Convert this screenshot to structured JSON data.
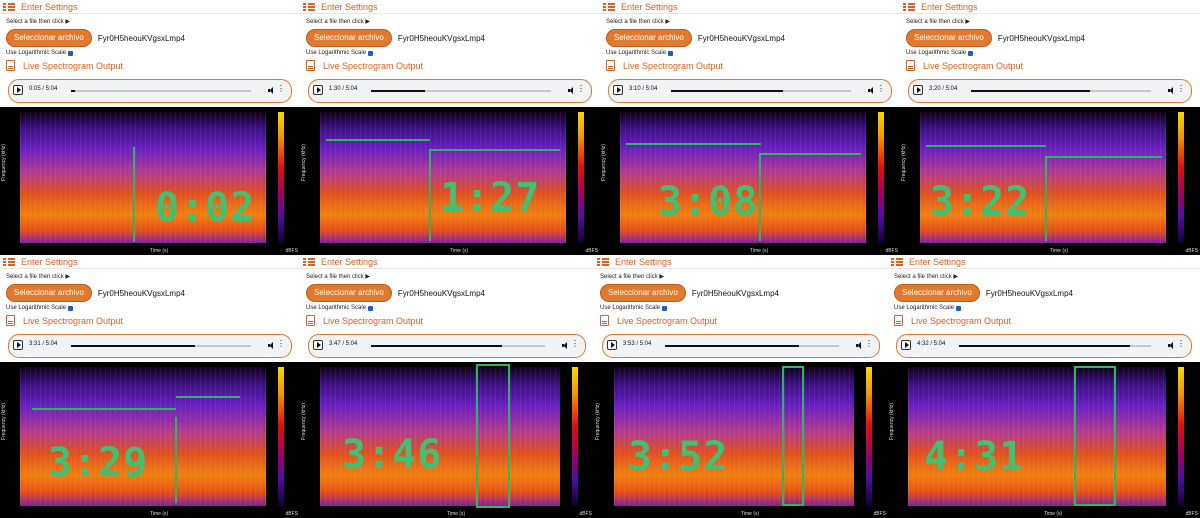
{
  "panels": [
    {
      "enter_settings": "Enter Settings",
      "select_file": "Select a file then click",
      "btn": "Seleccionar archivo",
      "filename": "Fyr0H5heouKVgsxLmp4",
      "log_scale": "Use Logarithmic Scale",
      "live_output": "Live Spectrogram Output",
      "player_time": "0:05 / 5:04",
      "progress": 0.02,
      "timestamp": "0:02",
      "y_label": "Frequency (kHz)",
      "x_label": "Time (s)",
      "unit": "dBFS"
    },
    {
      "enter_settings": "Enter Settings",
      "select_file": "Select a file then click",
      "btn": "Seleccionar archivo",
      "filename": "Fyr0H5heouKVgsxLmp4",
      "log_scale": "Use Logarithmic Scale",
      "live_output": "Live Spectrogram Output",
      "player_time": "1:30 / 5:04",
      "progress": 0.3,
      "timestamp": "1:27",
      "y_label": "Frequency (kHz)",
      "x_label": "Time (s)",
      "unit": "dBFS"
    },
    {
      "enter_settings": "Enter Settings",
      "select_file": "Select a file then click",
      "btn": "Seleccionar archivo",
      "filename": "Fyr0H5heouKVgsxLmp4",
      "log_scale": "Use Logarithmic Scale",
      "live_output": "Live Spectrogram Output",
      "player_time": "3:10 / 5:04",
      "progress": 0.62,
      "timestamp": "3:08",
      "y_label": "Frequency (kHz)",
      "x_label": "Time (s)",
      "unit": "dBFS"
    },
    {
      "enter_settings": "Enter Settings",
      "select_file": "Select a file then click",
      "btn": "Seleccionar archivo",
      "filename": "Fyr0H5heouKVgsxLmp4",
      "log_scale": "Use Logarithmic Scale",
      "live_output": "Live Spectrogram Output",
      "player_time": "3:20 / 5:04",
      "progress": 0.66,
      "timestamp": "3:22",
      "y_label": "Frequency (kHz)",
      "x_label": "Time (s)",
      "unit": "dBFS"
    },
    {
      "enter_settings": "Enter Settings",
      "select_file": "Select a file then click",
      "btn": "Seleccionar archivo",
      "filename": "Fyr0H5heouKVgsxLmp4",
      "log_scale": "Use Logarithmic Scale",
      "live_output": "Live Spectrogram Output",
      "player_time": "3:31 / 5:04",
      "progress": 0.69,
      "timestamp": "3:29",
      "y_label": "Frequency (kHz)",
      "x_label": "Time (s)",
      "unit": "dBFS"
    },
    {
      "enter_settings": "Enter Settings",
      "select_file": "Select a file then click",
      "btn": "Seleccionar archivo",
      "filename": "Fyr0H5heouKVgsxLmp4",
      "log_scale": "Use Logarithmic Scale",
      "live_output": "Live Spectrogram Output",
      "player_time": "3:47 / 5:04",
      "progress": 0.75,
      "timestamp": "3:46",
      "y_label": "Frequency (kHz)",
      "x_label": "Time (s)",
      "unit": "dBFS"
    },
    {
      "enter_settings": "Enter Settings",
      "select_file": "Select a file then click",
      "btn": "Seleccionar archivo",
      "filename": "Fyr0H5heouKVgsxLmp4",
      "log_scale": "Use Logarithmic Scale",
      "live_output": "Live Spectrogram Output",
      "player_time": "3:53 / 5:04",
      "progress": 0.77,
      "timestamp": "3:52",
      "y_label": "Frequency (kHz)",
      "x_label": "Time (s)",
      "unit": "dBFS"
    },
    {
      "enter_settings": "Enter Settings",
      "select_file": "Select a file then click",
      "btn": "Seleccionar archivo",
      "filename": "Fyr0H5heouKVgsxLmp4",
      "log_scale": "Use Logarithmic Scale",
      "live_output": "Live Spectrogram Output",
      "player_time": "4:32 / 5:04",
      "progress": 0.89,
      "timestamp": "4:31",
      "y_label": "Frequency (kHz)",
      "x_label": "Time (s)",
      "unit": "dBFS"
    }
  ]
}
